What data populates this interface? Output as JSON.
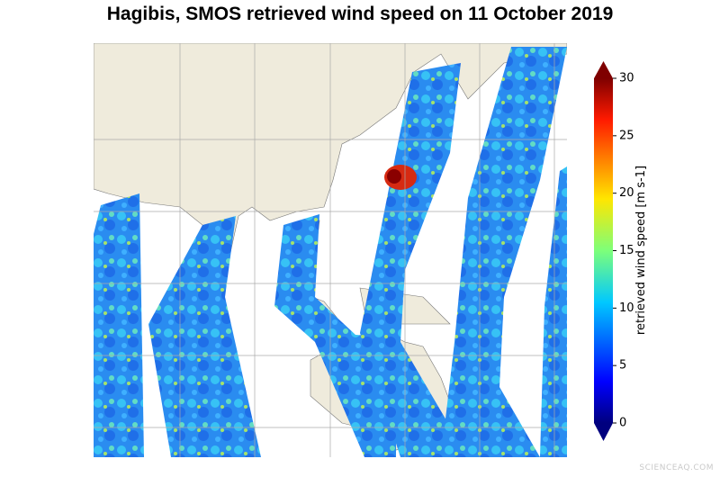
{
  "title": "Hagibis, SMOS retrieved wind speed on 11 October 2019",
  "colorbar": {
    "label": "retrieved wind speed [m s-1]",
    "lim": [
      0,
      30
    ],
    "ticks": [
      0,
      5,
      10,
      15,
      20,
      25,
      30
    ]
  },
  "watermark": "SCIENCEAQ.COM"
}
